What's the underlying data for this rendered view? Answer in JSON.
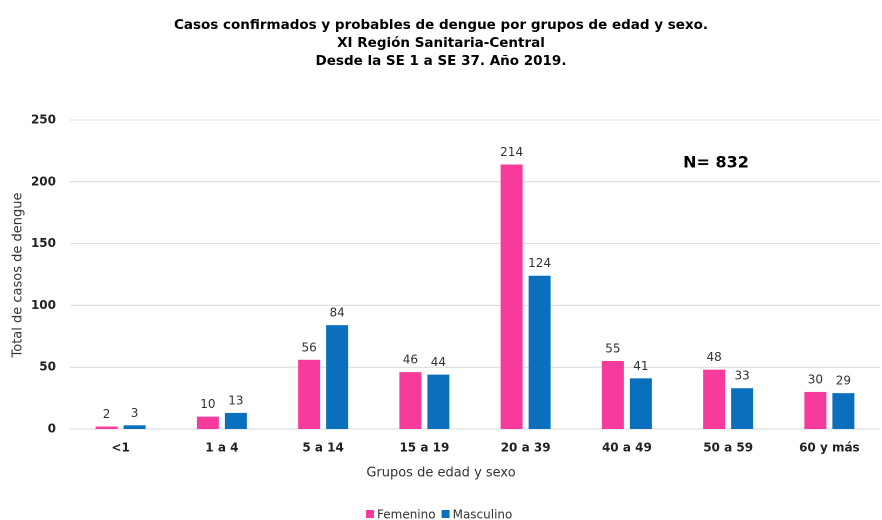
{
  "chart_data": {
    "type": "bar",
    "title": [
      "Casos confirmados y probables de dengue por grupos de edad y sexo.",
      "XI Región Sanitaria-Central",
      "Desde la SE 1 a SE 37. Año 2019."
    ],
    "annotation": "N= 832",
    "x_label": "Grupos de edad y sexo",
    "y_label": "Total de casos de dengue",
    "categories": [
      "<1",
      "1 a 4",
      "5 a 14",
      "15 a 19",
      "20 a 39",
      "40 a 49",
      "50 a 59",
      "60 y más"
    ],
    "series": [
      {
        "name": "Femenino",
        "color": "#f73b9c",
        "values": [
          2,
          10,
          56,
          46,
          214,
          55,
          48,
          30
        ]
      },
      {
        "name": "Masculino",
        "color": "#0a6fbd",
        "values": [
          3,
          13,
          84,
          44,
          124,
          41,
          33,
          29
        ]
      }
    ],
    "ylim": [
      0,
      250
    ],
    "yticks": [
      0,
      50,
      100,
      150,
      200,
      250
    ],
    "grid": true,
    "legend": "bottom"
  }
}
